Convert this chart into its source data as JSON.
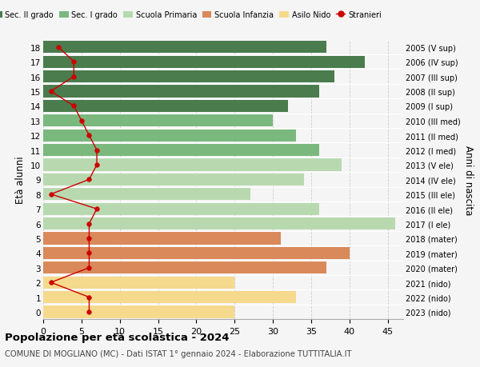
{
  "ages": [
    0,
    1,
    2,
    3,
    4,
    5,
    6,
    7,
    8,
    9,
    10,
    11,
    12,
    13,
    14,
    15,
    16,
    17,
    18
  ],
  "years": [
    "2023 (nido)",
    "2022 (nido)",
    "2021 (nido)",
    "2020 (mater)",
    "2019 (mater)",
    "2018 (mater)",
    "2017 (I ele)",
    "2016 (II ele)",
    "2015 (III ele)",
    "2014 (IV ele)",
    "2013 (V ele)",
    "2012 (I med)",
    "2011 (II med)",
    "2010 (III med)",
    "2009 (I sup)",
    "2008 (II sup)",
    "2007 (III sup)",
    "2006 (IV sup)",
    "2005 (V sup)"
  ],
  "bar_values": [
    25,
    33,
    25,
    37,
    40,
    31,
    46,
    36,
    27,
    34,
    39,
    36,
    33,
    30,
    32,
    36,
    38,
    42,
    37
  ],
  "bar_colors": [
    "#f5d98c",
    "#f5d98c",
    "#f5d98c",
    "#d9895a",
    "#d9895a",
    "#d9895a",
    "#b8d9b0",
    "#b8d9b0",
    "#b8d9b0",
    "#b8d9b0",
    "#b8d9b0",
    "#7ab87e",
    "#7ab87e",
    "#7ab87e",
    "#4a7c4e",
    "#4a7c4e",
    "#4a7c4e",
    "#4a7c4e",
    "#4a7c4e"
  ],
  "stranieri_values": [
    6,
    6,
    1,
    6,
    6,
    6,
    6,
    7,
    1,
    6,
    7,
    7,
    6,
    5,
    4,
    1,
    4,
    4,
    2
  ],
  "legend_labels": [
    "Sec. II grado",
    "Sec. I grado",
    "Scuola Primaria",
    "Scuola Infanzia",
    "Asilo Nido",
    "Stranieri"
  ],
  "legend_colors": [
    "#4a7c4e",
    "#7ab87e",
    "#b8d9b0",
    "#d9895a",
    "#f5d98c",
    "#cc0000"
  ],
  "ylabel_left": "Età alunni",
  "ylabel_right": "Anni di nascita",
  "title": "Popolazione per età scolastica - 2024",
  "subtitle": "COMUNE DI MOGLIANO (MC) - Dati ISTAT 1° gennaio 2024 - Elaborazione TUTTITALIA.IT",
  "xlim": [
    0,
    47
  ],
  "xticks": [
    0,
    5,
    10,
    15,
    20,
    25,
    30,
    35,
    40,
    45
  ],
  "bg_color": "#f5f5f5",
  "grid_color": "#cccccc"
}
